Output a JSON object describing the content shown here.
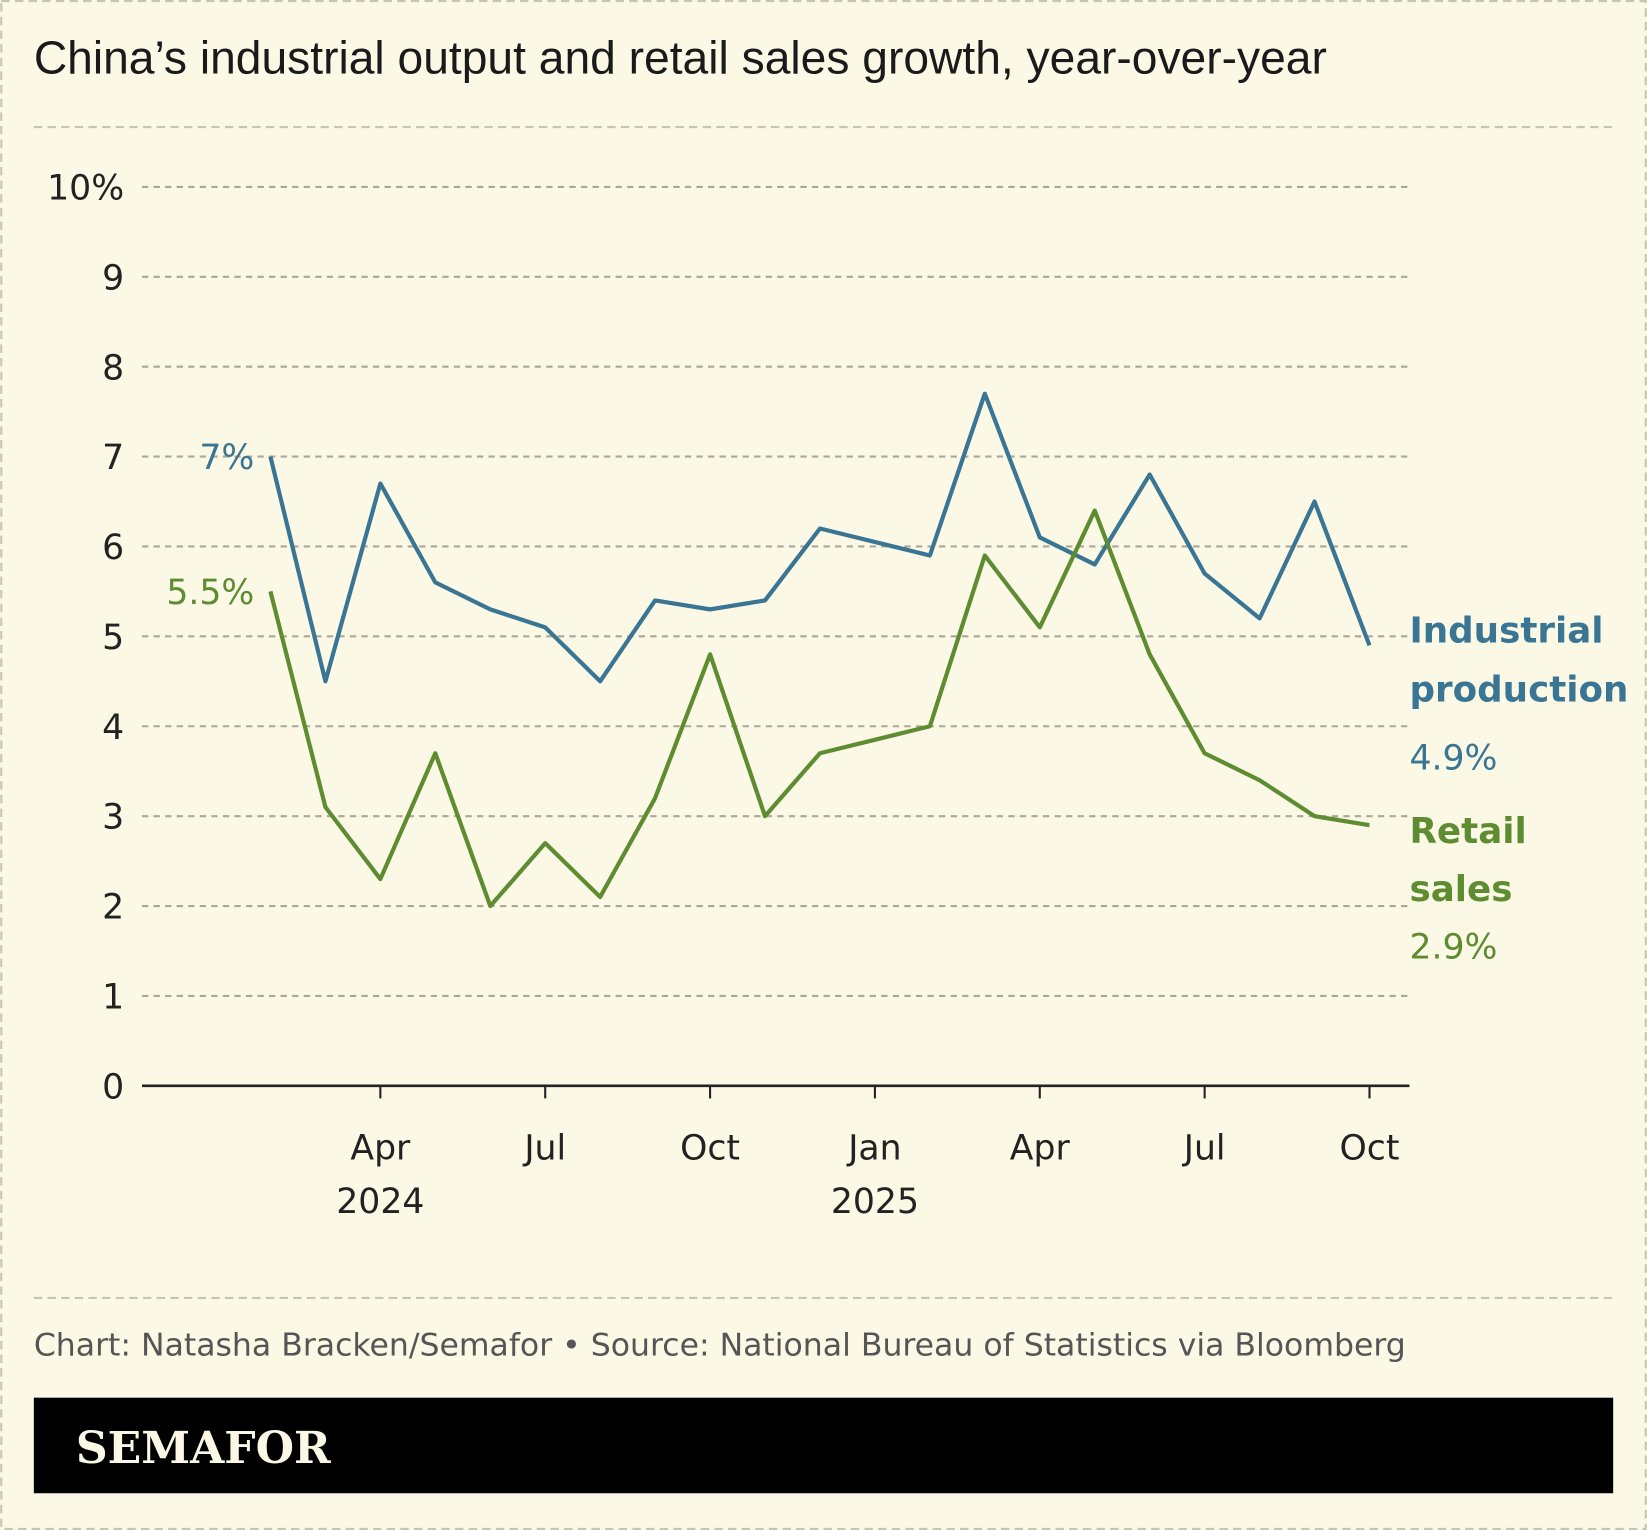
{
  "colors": {
    "background": "#fbf8e6",
    "industrial": "#3a7694",
    "retail": "#5e8c31"
  },
  "footer": {
    "credit": "Chart: Natasha Bracken/Semafor • Source: National Bureau of Statistics via Bloomberg",
    "logo": "SEMAFOR"
  },
  "chart_data": {
    "type": "line",
    "title": "China’s industrial output and retail sales growth, year-over-year",
    "ylim": [
      0,
      10
    ],
    "yticks": [
      {
        "v": 0,
        "label": "0"
      },
      {
        "v": 1,
        "label": "1"
      },
      {
        "v": 2,
        "label": "2"
      },
      {
        "v": 3,
        "label": "3"
      },
      {
        "v": 4,
        "label": "4"
      },
      {
        "v": 5,
        "label": "5"
      },
      {
        "v": 6,
        "label": "6"
      },
      {
        "v": 7,
        "label": "7"
      },
      {
        "v": 8,
        "label": "8"
      },
      {
        "v": 9,
        "label": "9"
      },
      {
        "v": 10,
        "label": "10%"
      }
    ],
    "xticks": [
      {
        "x": "2024-04",
        "label": "Apr",
        "sub": "2024"
      },
      {
        "x": "2024-07",
        "label": "Jul",
        "sub": ""
      },
      {
        "x": "2024-10",
        "label": "Oct",
        "sub": ""
      },
      {
        "x": "2025-01",
        "label": "Jan",
        "sub": "2025"
      },
      {
        "x": "2025-04",
        "label": "Apr",
        "sub": ""
      },
      {
        "x": "2025-07",
        "label": "Jul",
        "sub": ""
      },
      {
        "x": "2025-10",
        "label": "Oct",
        "sub": ""
      }
    ],
    "x": [
      "2024-02",
      "2024-03",
      "2024-04",
      "2024-05",
      "2024-06",
      "2024-07",
      "2024-08",
      "2024-09",
      "2024-10",
      "2024-11",
      "2024-12",
      "2025-02",
      "2025-03",
      "2025-04",
      "2025-05",
      "2025-06",
      "2025-07",
      "2025-08",
      "2025-09",
      "2025-10"
    ],
    "grid": true,
    "series": [
      {
        "name": "Industrial production",
        "color": "#3a7694",
        "start_label": "7%",
        "end_label": "4.9%",
        "values": [
          7.0,
          4.5,
          6.7,
          5.6,
          5.3,
          5.1,
          4.5,
          5.4,
          5.3,
          5.4,
          6.2,
          5.9,
          7.7,
          6.1,
          5.8,
          6.8,
          5.7,
          5.2,
          6.5,
          4.9
        ]
      },
      {
        "name": "Retail sales",
        "color": "#5e8c31",
        "start_label": "5.5%",
        "end_label": "2.9%",
        "values": [
          5.5,
          3.1,
          2.3,
          3.7,
          2.0,
          2.7,
          2.1,
          3.2,
          4.8,
          3.0,
          3.7,
          4.0,
          5.9,
          5.1,
          6.4,
          4.8,
          3.7,
          3.4,
          3.0,
          2.9
        ]
      }
    ]
  }
}
